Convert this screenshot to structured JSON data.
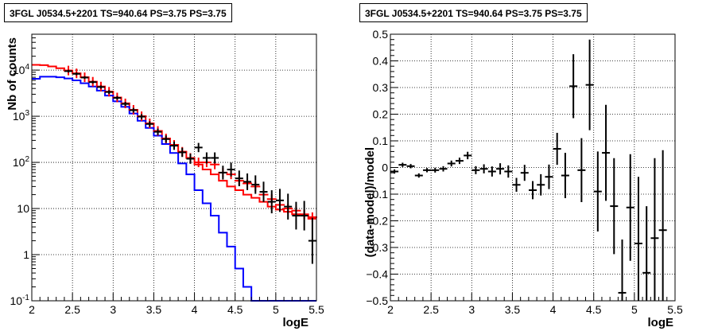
{
  "chart_data": [
    {
      "type": "histogram",
      "title": "3FGL J0534.5+2201 TS=940.64 PS=3.75 PS=3.75",
      "xlabel": "logE",
      "ylabel": "Nb of counts",
      "xlim": [
        2,
        5.5
      ],
      "ylim": [
        0.1,
        60000
      ],
      "yscale": "log",
      "grid": true,
      "x_ticks": [
        "2",
        "2.5",
        "3",
        "3.5",
        "4",
        "4.5",
        "5",
        "5.5"
      ],
      "y_ticks": [
        "10^{-1}",
        "1",
        "10",
        "10^{2}",
        "10^{3}",
        "10^{4}"
      ],
      "bin_edges": [
        2.0,
        2.1,
        2.2,
        2.3,
        2.4,
        2.5,
        2.6,
        2.7,
        2.8,
        2.9,
        3.0,
        3.1,
        3.2,
        3.3,
        3.4,
        3.5,
        3.6,
        3.7,
        3.8,
        3.9,
        4.0,
        4.1,
        4.2,
        4.3,
        4.4,
        4.5,
        4.6,
        4.7,
        4.8,
        4.9,
        5.0,
        5.1,
        5.2,
        5.3,
        5.4,
        5.5
      ],
      "series": [
        {
          "style": "step",
          "color": "#ff0000",
          "values": [
            13000,
            12800,
            12000,
            11000,
            9800,
            8500,
            7000,
            5600,
            4400,
            3400,
            2550,
            1900,
            1380,
            1000,
            700,
            480,
            330,
            240,
            170,
            125,
            90,
            70,
            55,
            40,
            30,
            25,
            20,
            17,
            14,
            11,
            9.5,
            8.5,
            7.5,
            7,
            6
          ]
        },
        {
          "style": "step",
          "color": "#0000ff",
          "values": [
            6500,
            7200,
            7200,
            7000,
            6600,
            6000,
            5200,
            4400,
            3600,
            2800,
            2100,
            1600,
            1150,
            800,
            560,
            380,
            250,
            160,
            95,
            55,
            25,
            13,
            7,
            3,
            1.5,
            0.5,
            0.2,
            0.1,
            0.1,
            0.1,
            0.1,
            0.1,
            0.1,
            0.1,
            0.1
          ]
        },
        {
          "style": "marker-cross",
          "color": "#ff0000",
          "x": [
            2.45,
            2.55,
            2.65,
            2.75,
            2.85,
            2.95,
            3.05,
            3.15,
            3.25,
            3.35,
            3.45,
            3.55,
            3.65,
            3.75,
            3.85,
            3.95,
            4.05,
            4.15,
            4.25,
            4.35,
            4.45,
            4.55,
            4.65,
            4.75,
            4.85,
            4.95,
            5.05,
            5.15,
            5.25,
            5.35,
            5.45
          ],
          "values": [
            9800,
            8500,
            7000,
            5600,
            4400,
            3400,
            2550,
            1900,
            1380,
            1000,
            700,
            480,
            330,
            240,
            170,
            125,
            100,
            100,
            90,
            60,
            55,
            40,
            35,
            30,
            20,
            16,
            12,
            10,
            9,
            7.5,
            6.5
          ]
        },
        {
          "style": "errorbar",
          "color": "#000000",
          "x": [
            2.45,
            2.55,
            2.65,
            2.75,
            2.85,
            2.95,
            3.05,
            3.15,
            3.25,
            3.35,
            3.45,
            3.55,
            3.65,
            3.75,
            3.85,
            3.95,
            4.05,
            4.15,
            4.25,
            4.35,
            4.45,
            4.55,
            4.65,
            4.75,
            4.85,
            4.95,
            5.05,
            5.15,
            5.25,
            5.35,
            5.45
          ],
          "values": [
            9500,
            8300,
            6900,
            5500,
            4300,
            3350,
            2500,
            1850,
            1350,
            980,
            680,
            460,
            320,
            230,
            165,
            120,
            210,
            125,
            125,
            60,
            70,
            45,
            38,
            33,
            23,
            14,
            15,
            11,
            7,
            7,
            2
          ],
          "err": [
            0.03,
            0.03,
            0.03,
            0.03,
            0.035,
            0.04,
            0.04,
            0.045,
            0.05,
            0.055,
            0.06,
            0.07,
            0.08,
            0.09,
            0.1,
            0.11,
            0.1,
            0.12,
            0.12,
            0.15,
            0.15,
            0.17,
            0.18,
            0.2,
            0.22,
            0.25,
            0.25,
            0.28,
            0.3,
            0.32,
            0.5
          ]
        }
      ]
    },
    {
      "type": "errorbar",
      "title": "3FGL J0534.5+2201 TS=940.64 PS=3.75 PS=3.75",
      "xlabel": "logE",
      "ylabel": "(data-model)/model",
      "xlim": [
        2,
        5.5
      ],
      "ylim": [
        -0.5,
        0.5
      ],
      "grid": true,
      "x_ticks": [
        "2",
        "2.5",
        "3",
        "3.5",
        "4",
        "4.5",
        "5",
        "5.5"
      ],
      "y_ticks": [
        "−0.5",
        "−0.4",
        "−0.3",
        "−0.2",
        "−0.1",
        "0",
        "0.1",
        "0.2",
        "0.3",
        "0.4",
        "0.5"
      ],
      "series": [
        {
          "color": "#000000",
          "x": [
            2.05,
            2.15,
            2.25,
            2.35,
            2.45,
            2.55,
            2.65,
            2.75,
            2.85,
            2.95,
            3.05,
            3.15,
            3.25,
            3.35,
            3.45,
            3.55,
            3.65,
            3.75,
            3.85,
            3.95,
            4.05,
            4.15,
            4.25,
            4.35,
            4.45,
            4.55,
            4.65,
            4.75,
            4.85,
            4.95,
            5.05,
            5.15,
            5.25,
            5.35
          ],
          "values": [
            -0.015,
            0.01,
            0.005,
            -0.03,
            -0.01,
            -0.01,
            -0.005,
            0.015,
            0.025,
            0.045,
            -0.01,
            -0.005,
            -0.015,
            -0.005,
            -0.015,
            -0.065,
            -0.02,
            -0.085,
            -0.065,
            -0.035,
            0.07,
            -0.03,
            0.305,
            -0.01,
            0.31,
            -0.09,
            0.055,
            -0.145,
            -0.47,
            -0.15,
            -0.285,
            -0.395,
            -0.265,
            -0.235
          ],
          "err": [
            0.008,
            0.008,
            0.008,
            0.008,
            0.008,
            0.009,
            0.01,
            0.011,
            0.012,
            0.014,
            0.015,
            0.017,
            0.019,
            0.021,
            0.023,
            0.026,
            0.03,
            0.034,
            0.04,
            0.046,
            0.06,
            0.085,
            0.12,
            0.12,
            0.17,
            0.15,
            0.18,
            0.18,
            0.2,
            0.2,
            0.25,
            0.25,
            0.3,
            0.3
          ]
        }
      ]
    }
  ]
}
